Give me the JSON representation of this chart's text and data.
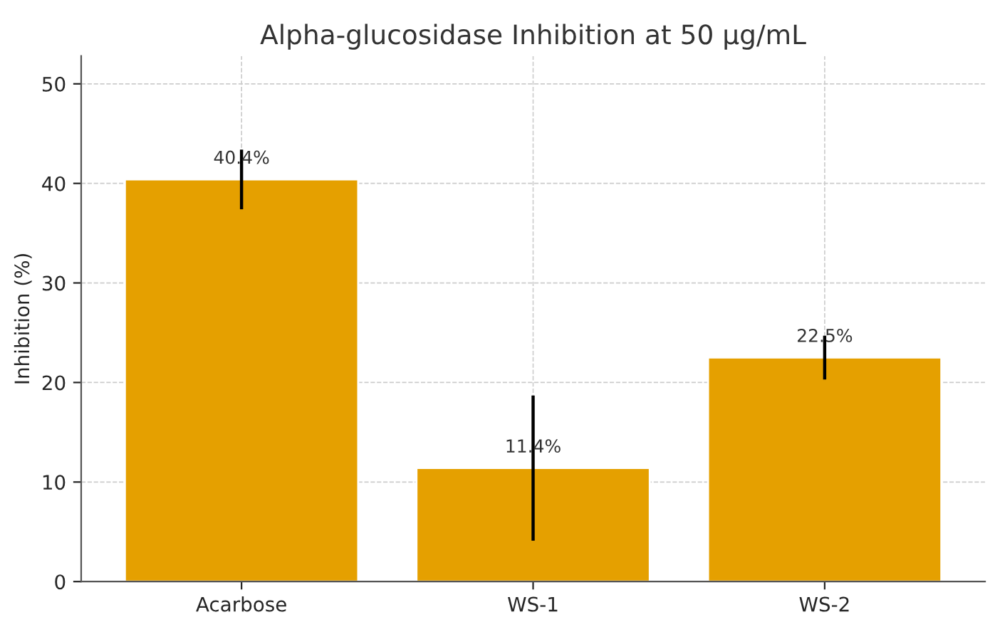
{
  "chart_data": {
    "type": "bar",
    "title": "Alpha-glucosidase Inhibition at 50 µg/mL",
    "ylabel": "Inhibition (%)",
    "categories": [
      "Acarbose",
      "WS-1",
      "WS-2"
    ],
    "values": [
      40.4,
      11.4,
      22.5
    ],
    "errors": [
      3.0,
      7.3,
      2.2
    ],
    "value_labels": [
      "40.4%",
      "11.4%",
      "22.5%"
    ],
    "color": "#e5a000",
    "ylim": [
      0,
      52.8
    ],
    "yticks": [
      0,
      10,
      20,
      30,
      40,
      50
    ],
    "grid": true
  }
}
